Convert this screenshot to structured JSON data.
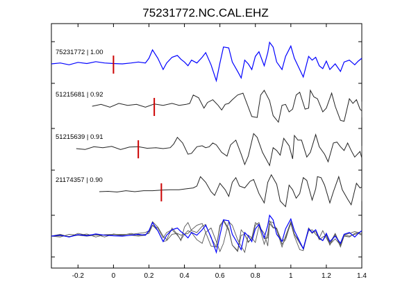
{
  "chart_data": {
    "type": "line",
    "title": "75231772.NC.CAL.EHZ",
    "xlabel": "",
    "ylabel": "",
    "xlim": [
      -0.35,
      1.4
    ],
    "xticks": [
      -0.2,
      0,
      0.2,
      0.4,
      0.6,
      0.8,
      1,
      1.2,
      1.4
    ],
    "xtick_labels": [
      "-0.2",
      "0",
      "0.2",
      "0.4",
      "0.6",
      "0.8",
      "1",
      "1.2",
      "1.4"
    ],
    "grid": false,
    "reference_color": "#0000ff",
    "trace_color": "#222222",
    "pick_color": "#cc0000",
    "series": [
      {
        "name": "75231772 | 1.00",
        "pick_time": 0.0,
        "shift": 0.0,
        "color": "#0000ff",
        "x": [
          -0.35,
          -0.3,
          -0.25,
          -0.2,
          -0.15,
          -0.1,
          -0.05,
          0.0,
          0.05,
          0.1,
          0.14,
          0.18,
          0.2,
          0.22,
          0.25,
          0.28,
          0.3,
          0.33,
          0.36,
          0.38,
          0.4,
          0.42,
          0.44,
          0.47,
          0.5,
          0.52,
          0.55,
          0.58,
          0.6,
          0.62,
          0.65,
          0.67,
          0.7,
          0.72,
          0.74,
          0.76,
          0.78,
          0.8,
          0.82,
          0.85,
          0.87,
          0.88,
          0.9,
          0.92,
          0.95,
          0.97,
          1.0,
          1.02,
          1.05,
          1.07,
          1.1,
          1.12,
          1.14,
          1.16,
          1.18,
          1.2,
          1.22,
          1.25,
          1.28,
          1.3,
          1.33,
          1.36,
          1.38,
          1.4
        ],
        "y": [
          0.0,
          0.05,
          -0.05,
          0.08,
          0.02,
          0.12,
          0.05,
          0.02,
          0.0,
          0.05,
          0.1,
          0.05,
          0.3,
          0.75,
          0.3,
          -0.3,
          0.05,
          0.35,
          0.45,
          0.25,
          0.1,
          -0.1,
          0.2,
          0.05,
          0.35,
          0.6,
          -0.05,
          -0.9,
          0.05,
          0.9,
          0.85,
          0.1,
          -0.4,
          -0.75,
          0.2,
          0.0,
          -0.3,
          0.4,
          0.65,
          -0.1,
          0.6,
          1.15,
          0.9,
          0.1,
          -0.3,
          0.4,
          0.95,
          0.3,
          -0.3,
          -0.7,
          0.4,
          0.2,
          0.35,
          -0.1,
          -0.25,
          0.15,
          -0.3,
          0.0,
          -0.4,
          0.1,
          0.2,
          -0.05,
          0.15,
          0.3
        ]
      },
      {
        "name": "51215681 | 0.92",
        "pick_time": 0.23,
        "shift": 0.23,
        "color": "#222222",
        "x": [
          -0.35,
          -0.3,
          -0.25,
          -0.2,
          -0.15,
          -0.1,
          -0.05,
          0.0,
          0.05,
          0.1,
          0.14,
          0.18,
          0.2,
          0.22,
          0.25,
          0.28,
          0.3,
          0.33,
          0.36,
          0.38,
          0.4,
          0.42,
          0.44,
          0.47,
          0.5,
          0.52,
          0.55,
          0.58,
          0.6,
          0.62,
          0.65,
          0.67,
          0.7,
          0.72,
          0.74,
          0.76,
          0.78,
          0.8,
          0.82,
          0.85,
          0.87,
          0.88,
          0.9,
          0.92,
          0.95,
          0.97,
          1.0,
          1.02,
          1.05,
          1.07,
          1.1,
          1.12,
          1.14,
          1.16,
          1.18,
          1.2,
          1.22,
          1.25,
          1.28,
          1.3,
          1.33,
          1.36,
          1.38,
          1.4
        ],
        "y": [
          0.0,
          0.1,
          -0.05,
          0.15,
          0.05,
          0.1,
          -0.05,
          0.12,
          0.05,
          0.15,
          0.05,
          0.1,
          0.15,
          0.6,
          0.45,
          -0.1,
          0.2,
          0.35,
          0.05,
          -0.2,
          0.1,
          0.15,
          0.35,
          0.6,
          0.7,
          0.2,
          -0.55,
          -0.6,
          0.6,
          0.85,
          0.3,
          -0.5,
          -0.85,
          0.05,
          0.1,
          -0.3,
          -0.15,
          0.6,
          0.75,
          -0.15,
          -0.1,
          0.85,
          0.5,
          0.4,
          -0.3,
          -0.1,
          0.7,
          0.0,
          -0.75,
          -0.8,
          0.4,
          0.15,
          0.35,
          -0.15,
          -0.25,
          0.05,
          -0.5,
          0.1,
          -0.6,
          0.0,
          -0.05,
          0.15,
          0.2,
          0.25
        ]
      },
      {
        "name": "51215639 | 0.91",
        "pick_time": 0.14,
        "shift": 0.14,
        "color": "#222222",
        "x": [
          -0.35,
          -0.3,
          -0.25,
          -0.2,
          -0.15,
          -0.1,
          -0.05,
          0.0,
          0.05,
          0.1,
          0.14,
          0.18,
          0.2,
          0.22,
          0.25,
          0.28,
          0.3,
          0.33,
          0.36,
          0.38,
          0.4,
          0.42,
          0.44,
          0.47,
          0.5,
          0.52,
          0.55,
          0.58,
          0.6,
          0.62,
          0.65,
          0.67,
          0.7,
          0.72,
          0.74,
          0.76,
          0.78,
          0.8,
          0.82,
          0.85,
          0.87,
          0.88,
          0.9,
          0.92,
          0.95,
          0.97,
          1.0,
          1.02,
          1.05,
          1.07,
          1.1,
          1.12,
          1.14,
          1.16,
          1.18,
          1.2,
          1.22,
          1.25,
          1.28,
          1.3,
          1.33,
          1.36,
          1.38,
          1.4
        ],
        "y": [
          0.0,
          -0.05,
          0.1,
          0.05,
          0.12,
          -0.05,
          0.08,
          0.1,
          0.02,
          0.05,
          0.0,
          0.05,
          0.25,
          0.6,
          0.3,
          -0.3,
          -0.25,
          0.1,
          0.15,
          0.05,
          0.1,
          0.3,
          0.2,
          -0.2,
          -0.4,
          0.2,
          0.45,
          -0.3,
          -0.85,
          -0.4,
          0.8,
          0.6,
          -0.2,
          -0.55,
          -0.9,
          0.05,
          -0.1,
          -0.35,
          0.55,
          0.15,
          -0.55,
          0.7,
          0.45,
          0.45,
          -0.45,
          -0.2,
          0.75,
          0.1,
          -0.3,
          -0.7,
          0.3,
          0.35,
          0.1,
          -0.1,
          0.3,
          -0.1,
          -0.45,
          -0.15,
          -0.5,
          0.05,
          0.0,
          0.1,
          0.15,
          0.05
        ]
      },
      {
        "name": "21174357 | 0.90",
        "pick_time": 0.27,
        "shift": 0.27,
        "color": "#222222",
        "x": [
          -0.35,
          -0.3,
          -0.25,
          -0.2,
          -0.15,
          -0.1,
          -0.05,
          0.0,
          0.05,
          0.1,
          0.14,
          0.18,
          0.2,
          0.22,
          0.25,
          0.28,
          0.3,
          0.33,
          0.36,
          0.38,
          0.4,
          0.42,
          0.44,
          0.47,
          0.5,
          0.52,
          0.55,
          0.58,
          0.6,
          0.62,
          0.65,
          0.67,
          0.7,
          0.72,
          0.74,
          0.76,
          0.78,
          0.8,
          0.82,
          0.85,
          0.87,
          0.88,
          0.9,
          0.92,
          0.95,
          0.97,
          1.0,
          1.02,
          1.05,
          1.07,
          1.1,
          1.12,
          1.14,
          1.16,
          1.18,
          1.2,
          1.22,
          1.25,
          1.28,
          1.3,
          1.33,
          1.36,
          1.38,
          1.4
        ],
        "y": [
          0.0,
          0.02,
          -0.02,
          0.05,
          0.0,
          0.05,
          0.05,
          0.08,
          0.1,
          0.1,
          0.15,
          0.2,
          0.3,
          0.8,
          0.5,
          0.0,
          -0.2,
          0.45,
          0.1,
          -0.25,
          0.5,
          0.75,
          0.3,
          0.2,
          0.55,
          0.65,
          -0.1,
          -0.6,
          0.5,
          0.9,
          0.4,
          -0.5,
          -0.8,
          0.35,
          0.1,
          -0.35,
          -0.1,
          0.75,
          0.6,
          -0.45,
          0.15,
          0.8,
          0.75,
          0.35,
          -0.6,
          0.0,
          0.8,
          0.1,
          -0.4,
          -0.7,
          0.45,
          0.2,
          0.25,
          -0.2,
          -0.05,
          0.05,
          -0.4,
          0.15,
          -0.5,
          0.05,
          0.15,
          0.25,
          0.2,
          0.1
        ]
      }
    ]
  }
}
